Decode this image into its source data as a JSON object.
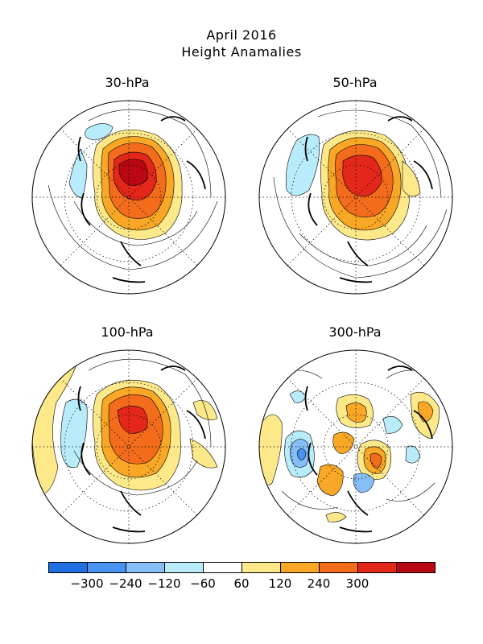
{
  "title_line1": "April 2016",
  "title_line2": "Height Anamalies",
  "panels": [
    {
      "label": "30-hPa"
    },
    {
      "label": "50-hPa"
    },
    {
      "label": "100-hPa"
    },
    {
      "label": "300-hPa"
    }
  ],
  "colorbar": {
    "colors": [
      "#1f6fe0",
      "#4a92f0",
      "#86bff8",
      "#b8ecfb",
      "#ffffff",
      "#fde88a",
      "#f8a726",
      "#f26c1c",
      "#e3281b",
      "#ba0812"
    ],
    "ticks": [
      "−300",
      "−240",
      "−120",
      "−60",
      "60",
      "120",
      "240",
      "300"
    ]
  },
  "colors": {
    "pos_light": "#fde88a",
    "pos_mid": "#f8a726",
    "pos_strong": "#f26c1c",
    "pos_max": "#e3281b",
    "neg_light": "#b8ecfb",
    "neg_mid": "#86bff8"
  }
}
